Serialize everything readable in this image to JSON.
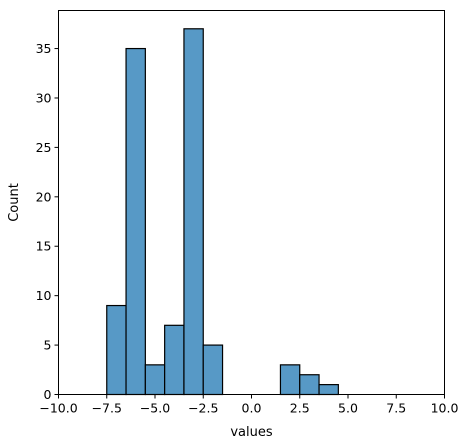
{
  "chart_data": {
    "type": "bar",
    "title": "",
    "xlabel": "values",
    "ylabel": "Count",
    "xlim": [
      -10,
      10
    ],
    "ylim": [
      0,
      38.85
    ],
    "grid": false,
    "x_ticks": [
      -10,
      -7.5,
      -5,
      -2.5,
      0,
      2.5,
      5,
      7.5,
      10
    ],
    "x_tick_labels": [
      "−10.0",
      "−7.5",
      "−5.0",
      "−2.5",
      "0.0",
      "2.5",
      "5.0",
      "7.5",
      "10.0"
    ],
    "y_ticks": [
      0,
      5,
      10,
      15,
      20,
      25,
      30,
      35
    ],
    "y_tick_labels": [
      "0",
      "5",
      "10",
      "15",
      "20",
      "25",
      "30",
      "35"
    ],
    "bin_edges": [
      -7.5,
      -6.5,
      -5.5,
      -4.5,
      -3.5,
      -2.5,
      -1.5,
      -0.5,
      0.5,
      1.5,
      2.5,
      3.5,
      4.5
    ],
    "counts": [
      9,
      35,
      3,
      7,
      37,
      5,
      0,
      0,
      0,
      3,
      2,
      1
    ],
    "bar_color": "#5799c6",
    "edge_color": "#000000"
  }
}
